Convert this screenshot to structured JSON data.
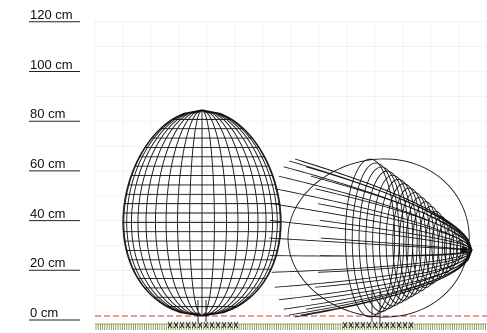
{
  "ruler": {
    "unit": "cm",
    "labels": [
      {
        "value": 120,
        "text": "120 cm"
      },
      {
        "value": 100,
        "text": "100 cm"
      },
      {
        "value": 80,
        "text": "80 cm"
      },
      {
        "value": 60,
        "text": "60 cm"
      },
      {
        "value": 40,
        "text": "40 cm"
      },
      {
        "value": 20,
        "text": "20 cm"
      },
      {
        "value": 0,
        "text": "0 cm"
      }
    ]
  },
  "objects": [
    {
      "name": "egg-upright",
      "height_cm": 86,
      "width_cm": 63
    },
    {
      "name": "egg-lying",
      "height_cm": 62,
      "length_cm": 86
    }
  ],
  "colors": {
    "wire": "#111111",
    "grid": "#ececec",
    "ground_line": "#e03030",
    "ground_hatch": "#7a8a3a",
    "ruler_line": "#222222"
  }
}
